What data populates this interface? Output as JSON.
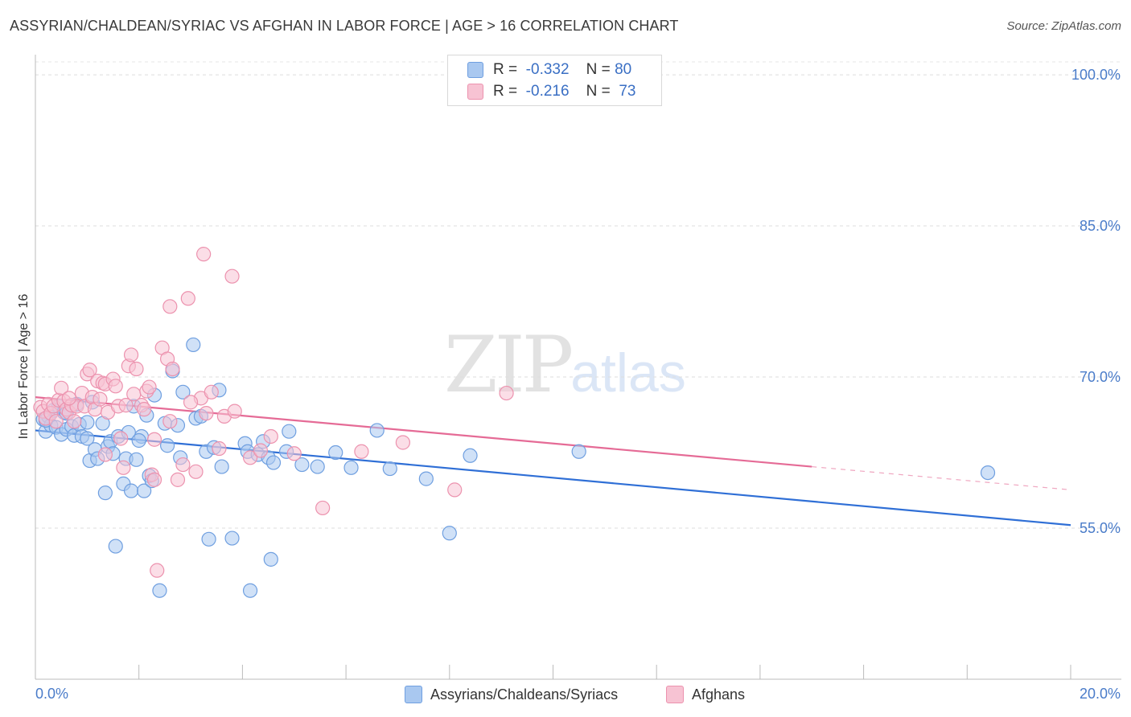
{
  "title": "ASSYRIAN/CHALDEAN/SYRIAC VS AFGHAN IN LABOR FORCE | AGE > 16 CORRELATION CHART",
  "source": "Source: ZipAtlas.com",
  "watermark": {
    "zip": "ZIP",
    "atlas": "atlas"
  },
  "legend": {
    "rows": [
      {
        "r_label": "R =",
        "r_value": "-0.332",
        "n_label": "N =",
        "n_value": "80",
        "color": "#a9c8f0",
        "border": "#6f9fe0"
      },
      {
        "r_label": "R =",
        "r_value": "-0.216",
        "n_label": "N =",
        "n_value": "73",
        "color": "#f7c3d3",
        "border": "#ec92ae"
      }
    ]
  },
  "bottom_legend": [
    {
      "label": "Assyrians/Chaldeans/Syriacs",
      "color": "#a9c8f0",
      "border": "#6f9fe0"
    },
    {
      "label": "Afghans",
      "color": "#f7c3d3",
      "border": "#ec92ae"
    }
  ],
  "chart_data": {
    "type": "scatter",
    "title": "ASSYRIAN/CHALDEAN/SYRIAC VS AFGHAN IN LABOR FORCE | AGE > 16 CORRELATION CHART",
    "xlabel": "",
    "ylabel": "In Labor Force | Age > 16",
    "xlim": [
      0,
      20
    ],
    "ylim": [
      40,
      102
    ],
    "x_tick_labels": [
      "0.0%",
      "20.0%"
    ],
    "y_ticks": [
      55,
      70,
      85,
      100
    ],
    "y_tick_labels": [
      "55.0%",
      "70.0%",
      "85.0%",
      "100.0%"
    ],
    "grid": true,
    "series": [
      {
        "name": "Assyrians/Chaldeans/Syriacs",
        "color": "#6f9fe0",
        "fill": "#a9c8f0",
        "line_color": "#2f6fd6",
        "trend": {
          "x0": 0.0,
          "y0": 64.7,
          "x1": 20.0,
          "y1": 55.3,
          "dashed_from": null
        },
        "points": [
          [
            0.15,
            65.8
          ],
          [
            0.2,
            64.6
          ],
          [
            0.25,
            66.1
          ],
          [
            0.3,
            65.2
          ],
          [
            0.35,
            66.7
          ],
          [
            0.4,
            65.0
          ],
          [
            0.45,
            67.1
          ],
          [
            0.5,
            64.3
          ],
          [
            0.55,
            66.5
          ],
          [
            0.6,
            64.8
          ],
          [
            0.7,
            65.1
          ],
          [
            0.75,
            64.2
          ],
          [
            0.8,
            67.3
          ],
          [
            0.85,
            65.3
          ],
          [
            0.9,
            64.1
          ],
          [
            1.0,
            65.5
          ],
          [
            1.05,
            61.7
          ],
          [
            1.1,
            67.5
          ],
          [
            1.15,
            62.8
          ],
          [
            1.2,
            61.9
          ],
          [
            1.3,
            65.4
          ],
          [
            1.35,
            58.5
          ],
          [
            1.4,
            63.1
          ],
          [
            1.45,
            63.6
          ],
          [
            1.5,
            62.4
          ],
          [
            1.55,
            53.2
          ],
          [
            1.6,
            64.1
          ],
          [
            1.7,
            59.4
          ],
          [
            1.75,
            61.9
          ],
          [
            1.8,
            64.5
          ],
          [
            1.85,
            58.7
          ],
          [
            1.9,
            67.1
          ],
          [
            1.95,
            61.8
          ],
          [
            2.05,
            64.1
          ],
          [
            2.1,
            58.7
          ],
          [
            2.15,
            66.2
          ],
          [
            2.2,
            60.2
          ],
          [
            2.25,
            59.7
          ],
          [
            2.3,
            68.2
          ],
          [
            2.4,
            48.8
          ],
          [
            2.5,
            65.4
          ],
          [
            2.55,
            63.2
          ],
          [
            2.65,
            70.6
          ],
          [
            2.75,
            65.2
          ],
          [
            2.85,
            68.5
          ],
          [
            3.05,
            73.2
          ],
          [
            3.1,
            65.9
          ],
          [
            3.2,
            66.1
          ],
          [
            3.3,
            62.6
          ],
          [
            3.35,
            53.9
          ],
          [
            3.45,
            63.0
          ],
          [
            3.55,
            68.7
          ],
          [
            3.6,
            61.1
          ],
          [
            3.8,
            54.0
          ],
          [
            4.05,
            63.4
          ],
          [
            4.1,
            62.6
          ],
          [
            4.3,
            62.3
          ],
          [
            4.4,
            63.6
          ],
          [
            4.5,
            62.0
          ],
          [
            4.55,
            51.9
          ],
          [
            4.6,
            61.5
          ],
          [
            4.85,
            62.6
          ],
          [
            4.9,
            64.6
          ],
          [
            5.15,
            61.3
          ],
          [
            5.45,
            61.1
          ],
          [
            5.8,
            62.5
          ],
          [
            6.1,
            61.0
          ],
          [
            6.6,
            64.7
          ],
          [
            6.85,
            60.9
          ],
          [
            7.55,
            59.9
          ],
          [
            8.0,
            54.5
          ],
          [
            8.4,
            62.2
          ],
          [
            10.5,
            62.6
          ],
          [
            0.2,
            65.7
          ],
          [
            0.6,
            66.4
          ],
          [
            1.0,
            63.9
          ],
          [
            4.15,
            48.8
          ],
          [
            2.0,
            63.7
          ],
          [
            2.8,
            62.0
          ],
          [
            18.4,
            60.5
          ]
        ]
      },
      {
        "name": "Afghans",
        "color": "#ec92ae",
        "fill": "#f7c3d3",
        "line_color": "#e56b96",
        "trend": {
          "x0": 0.0,
          "y0": 68.0,
          "x1": 20.0,
          "y1": 58.8,
          "dashed_from": 15.0
        },
        "points": [
          [
            0.1,
            67.0
          ],
          [
            0.15,
            66.6
          ],
          [
            0.2,
            65.9
          ],
          [
            0.25,
            67.3
          ],
          [
            0.3,
            66.4
          ],
          [
            0.35,
            67.1
          ],
          [
            0.4,
            65.6
          ],
          [
            0.45,
            67.7
          ],
          [
            0.5,
            68.9
          ],
          [
            0.55,
            67.6
          ],
          [
            0.6,
            66.8
          ],
          [
            0.65,
            66.5
          ],
          [
            0.7,
            67.2
          ],
          [
            0.75,
            65.6
          ],
          [
            0.8,
            67.1
          ],
          [
            0.9,
            68.4
          ],
          [
            0.95,
            67.1
          ],
          [
            1.0,
            70.3
          ],
          [
            1.05,
            70.7
          ],
          [
            1.1,
            68.0
          ],
          [
            1.15,
            66.8
          ],
          [
            1.2,
            69.6
          ],
          [
            1.25,
            67.8
          ],
          [
            1.3,
            69.4
          ],
          [
            1.35,
            69.3
          ],
          [
            1.4,
            66.5
          ],
          [
            1.5,
            69.8
          ],
          [
            1.55,
            69.1
          ],
          [
            1.6,
            67.1
          ],
          [
            1.65,
            63.9
          ],
          [
            1.7,
            61.0
          ],
          [
            1.75,
            67.2
          ],
          [
            1.8,
            71.1
          ],
          [
            1.85,
            72.2
          ],
          [
            1.9,
            68.3
          ],
          [
            1.95,
            70.8
          ],
          [
            2.05,
            67.2
          ],
          [
            2.1,
            66.8
          ],
          [
            2.15,
            68.6
          ],
          [
            2.2,
            69.0
          ],
          [
            2.25,
            60.3
          ],
          [
            2.3,
            63.8
          ],
          [
            2.35,
            50.8
          ],
          [
            2.45,
            72.9
          ],
          [
            2.55,
            71.8
          ],
          [
            2.6,
            65.6
          ],
          [
            2.65,
            70.8
          ],
          [
            2.75,
            59.8
          ],
          [
            2.85,
            61.3
          ],
          [
            2.95,
            77.8
          ],
          [
            3.1,
            60.6
          ],
          [
            3.2,
            67.9
          ],
          [
            3.25,
            82.2
          ],
          [
            3.3,
            66.4
          ],
          [
            3.4,
            68.5
          ],
          [
            3.55,
            62.9
          ],
          [
            3.65,
            66.1
          ],
          [
            3.8,
            80.0
          ],
          [
            3.85,
            66.6
          ],
          [
            4.15,
            62.0
          ],
          [
            4.35,
            62.7
          ],
          [
            4.55,
            64.1
          ],
          [
            5.0,
            62.4
          ],
          [
            5.55,
            57.0
          ],
          [
            6.3,
            62.6
          ],
          [
            7.1,
            63.5
          ],
          [
            8.1,
            58.8
          ],
          [
            9.1,
            68.4
          ],
          [
            2.6,
            77.0
          ],
          [
            1.35,
            62.3
          ],
          [
            2.3,
            59.8
          ],
          [
            0.65,
            67.9
          ],
          [
            3.0,
            67.5
          ]
        ]
      }
    ]
  }
}
